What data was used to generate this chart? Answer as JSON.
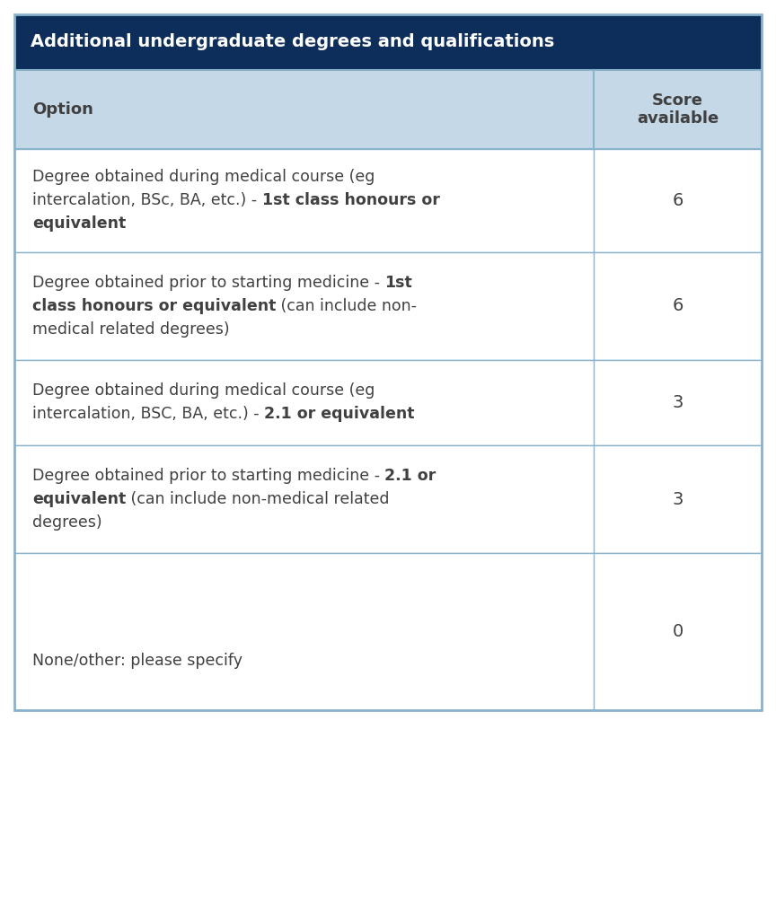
{
  "title": "Additional undergraduate degrees and qualifications",
  "title_bg": "#0d2d5a",
  "title_color": "#ffffff",
  "header_bg": "#c5d8e8",
  "row_bg": "#ffffff",
  "border_color": "#8ab4cc",
  "text_color": "#404040",
  "col1_header": "Option",
  "col2_header": "Score\navailable",
  "rows": [
    {
      "segments": [
        {
          "text": "Degree obtained during medical course (eg intercalation, BSc, BA, etc.) - ",
          "bold": false
        },
        {
          "text": "1st class honours or equivalent",
          "bold": true
        }
      ],
      "score": "6",
      "lines": [
        [
          {
            "text": "Degree obtained during medical course (eg",
            "bold": false
          }
        ],
        [
          {
            "text": "intercalation, BSc, BA, etc.) - ",
            "bold": false
          },
          {
            "text": "1st class honours or",
            "bold": true
          }
        ],
        [
          {
            "text": "equivalent",
            "bold": true
          }
        ]
      ]
    },
    {
      "segments": [
        {
          "text": "Degree obtained prior to starting medicine - ",
          "bold": false
        },
        {
          "text": "1st class honours or equivalent",
          "bold": true
        },
        {
          "text": " (can include non-medical related degrees)",
          "bold": false
        }
      ],
      "score": "6",
      "lines": [
        [
          {
            "text": "Degree obtained prior to starting medicine - ",
            "bold": false
          },
          {
            "text": "1st",
            "bold": true
          }
        ],
        [
          {
            "text": "class honours or equivalent",
            "bold": true
          },
          {
            "text": " (can include non-",
            "bold": false
          }
        ],
        [
          {
            "text": "medical related degrees)",
            "bold": false
          }
        ]
      ]
    },
    {
      "segments": [
        {
          "text": "Degree obtained during medical course (eg intercalation, BSC, BA, etc.) - ",
          "bold": false
        },
        {
          "text": "2.1 or equivalent",
          "bold": true
        }
      ],
      "score": "3",
      "lines": [
        [
          {
            "text": "Degree obtained during medical course (eg",
            "bold": false
          }
        ],
        [
          {
            "text": "intercalation, BSC, BA, etc.) - ",
            "bold": false
          },
          {
            "text": "2.1 or equivalent",
            "bold": true
          }
        ]
      ]
    },
    {
      "segments": [
        {
          "text": "Degree obtained prior to starting medicine - ",
          "bold": false
        },
        {
          "text": "2.1 or equivalent",
          "bold": true
        },
        {
          "text": " (can include non-medical related degrees)",
          "bold": false
        }
      ],
      "score": "3",
      "lines": [
        [
          {
            "text": "Degree obtained prior to starting medicine - ",
            "bold": false
          },
          {
            "text": "2.1 or",
            "bold": true
          }
        ],
        [
          {
            "text": "equivalent",
            "bold": true
          },
          {
            "text": " (can include non-medical related",
            "bold": false
          }
        ],
        [
          {
            "text": "degrees)",
            "bold": false
          }
        ]
      ]
    },
    {
      "segments": [
        {
          "text": "None/other: please specify",
          "bold": false
        }
      ],
      "score": "0",
      "lines": [
        [
          {
            "text": "None/other: please specify",
            "bold": false
          }
        ]
      ]
    }
  ]
}
